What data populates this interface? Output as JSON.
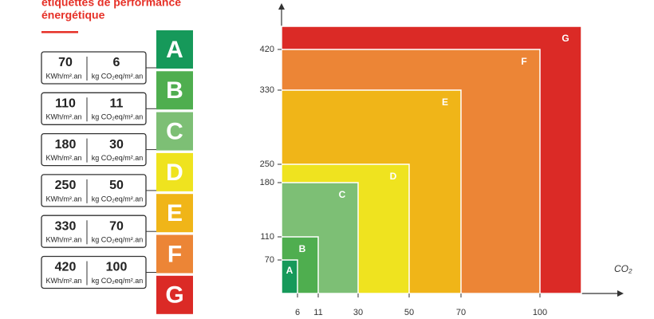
{
  "header": {
    "title_lines": [
      "étiquettes de performance",
      "énergétique"
    ]
  },
  "labels": {
    "energy_unit": "KWh/m².an",
    "co2_unit": "kg CO₂eq/m².an"
  },
  "chart_data": {
    "type": "nested-rect",
    "x_label": "CO₂",
    "xticks": [
      6,
      11,
      30,
      50,
      70,
      100
    ],
    "yticks": [
      70,
      110,
      180,
      250,
      330,
      420
    ],
    "classes": [
      {
        "name": "A",
        "color": "#16995a"
      },
      {
        "name": "B",
        "color": "#4fae4f"
      },
      {
        "name": "C",
        "color": "#7dbf75"
      },
      {
        "name": "D",
        "color": "#efe31f"
      },
      {
        "name": "E",
        "color": "#f0b518"
      },
      {
        "name": "F",
        "color": "#ec8536"
      },
      {
        "name": "G",
        "color": "#db2a26"
      }
    ]
  }
}
